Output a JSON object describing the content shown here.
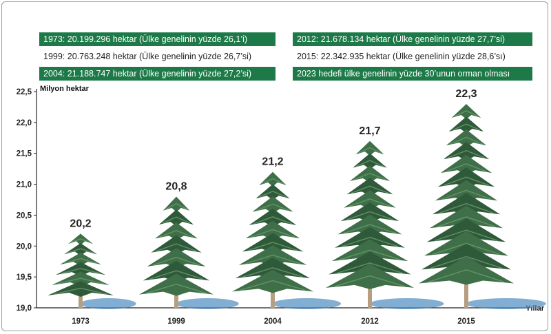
{
  "info_boxes": [
    {
      "text": "1973: 20.199.296 hektar (Ülke genelinin yüzde 26,1’i)",
      "style": "green"
    },
    {
      "text": "1999: 20.763.248 hektar (Ülke genelinin yüzde 26,7’si)",
      "style": "plain"
    },
    {
      "text": "2004: 21.188.747 hektar (Ülke genelinin yüzde 27,2’si)",
      "style": "green"
    },
    {
      "text": "2012: 21.678.134 hektar (Ülke genelinin yüzde 27,7’si)",
      "style": "green"
    },
    {
      "text": "2015: 22.342.935 hektar (Ülke genelinin yüzde 28,6’sı)",
      "style": "plain"
    },
    {
      "text": "2023 hedefi ülke genelinin yüzde 30’unun orman olması",
      "style": "green"
    }
  ],
  "chart_data": {
    "type": "bar",
    "mark": "tree",
    "categories": [
      "1973",
      "1999",
      "2004",
      "2012",
      "2015"
    ],
    "values": [
      20.2,
      20.8,
      21.2,
      21.7,
      22.3
    ],
    "value_labels": [
      "20,2",
      "20,8",
      "21,2",
      "21,7",
      "22,3"
    ],
    "ylabel": "Milyon hektar",
    "xlabel": "Yıllar",
    "ylim": [
      19.0,
      22.5
    ],
    "yticks": [
      "19,0",
      "19,5",
      "20,0",
      "20,5",
      "21,0",
      "21,5",
      "22,0",
      "22,5"
    ],
    "grid": false,
    "colors": {
      "tree_dark": "#2f5a3a",
      "tree_light": "#6d9a6e",
      "trunk": "#b79e80",
      "shadow": "#4f8cc0",
      "box_green": "#1d7a48"
    }
  }
}
